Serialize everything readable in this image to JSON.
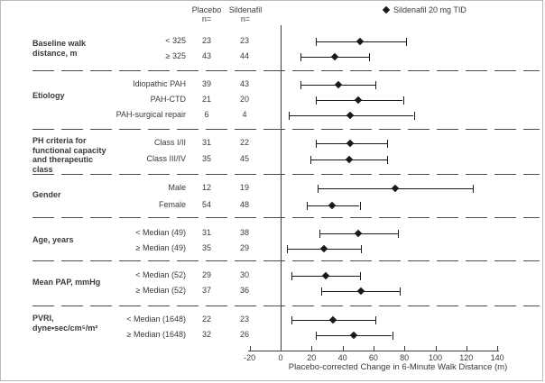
{
  "header": {
    "placebo_col": "Placebo",
    "sildenafil_col": "Sildenafil",
    "n_label": "n="
  },
  "legend": {
    "label": "Sildenafil 20 mg TID"
  },
  "chart_data": {
    "type": "scatter",
    "subtype": "forest-plot",
    "title": "",
    "xlabel": "Placebo-corrected Change in 6-Minute Walk Distance (m)",
    "ylabel": "",
    "xlim": [
      -20,
      140
    ],
    "xticks": [
      -20,
      0,
      20,
      40,
      60,
      80,
      100,
      120,
      140
    ],
    "reference_line_x": 0,
    "grid": false,
    "legend_position": "top-right",
    "legend_entries": [
      {
        "marker": "diamond",
        "label": "Sildenafil 20 mg TID"
      }
    ],
    "column_headers": [
      "Placebo n=",
      "Sildenafil n="
    ],
    "groups": [
      {
        "label": "Baseline walk\ndistance, m",
        "rows": [
          {
            "label": "< 325",
            "placebo_n": "23",
            "sildenafil_n": "23",
            "estimate": 51,
            "ci_low": 23,
            "ci_high": 81
          },
          {
            "label": "≥ 325",
            "placebo_n": "43",
            "sildenafil_n": "44",
            "estimate": 35,
            "ci_low": 13,
            "ci_high": 57
          }
        ]
      },
      {
        "label": "Etiology",
        "rows": [
          {
            "label": "Idiopathic PAH",
            "placebo_n": "39",
            "sildenafil_n": "43",
            "estimate": 37,
            "ci_low": 13,
            "ci_high": 61
          },
          {
            "label": "PAH-CTD",
            "placebo_n": "21",
            "sildenafil_n": "20",
            "estimate": 50,
            "ci_low": 23,
            "ci_high": 79
          },
          {
            "label": "PAH-surgical repair",
            "placebo_n": "6",
            "sildenafil_n": "4",
            "estimate": 45,
            "ci_low": 5,
            "ci_high": 86
          }
        ]
      },
      {
        "label": "PH criteria for\nfunctional capacity\nand therapeutic\nclass",
        "rows": [
          {
            "label": "Class I/II",
            "placebo_n": "31",
            "sildenafil_n": "22",
            "estimate": 45,
            "ci_low": 23,
            "ci_high": 69
          },
          {
            "label": "Class III/IV",
            "placebo_n": "35",
            "sildenafil_n": "45",
            "estimate": 44,
            "ci_low": 19,
            "ci_high": 69
          }
        ]
      },
      {
        "label": "Gender",
        "rows": [
          {
            "label": "Male",
            "placebo_n": "12",
            "sildenafil_n": "19",
            "estimate": 74,
            "ci_low": 24,
            "ci_high": 124
          },
          {
            "label": "Female",
            "placebo_n": "54",
            "sildenafil_n": "48",
            "estimate": 33,
            "ci_low": 17,
            "ci_high": 51
          }
        ]
      },
      {
        "label": "Age, years",
        "rows": [
          {
            "label": "< Median (49)",
            "placebo_n": "31",
            "sildenafil_n": "38",
            "estimate": 50,
            "ci_low": 25,
            "ci_high": 76
          },
          {
            "label": "≥ Median (49)",
            "placebo_n": "35",
            "sildenafil_n": "29",
            "estimate": 28,
            "ci_low": 4,
            "ci_high": 52
          }
        ]
      },
      {
        "label": "Mean PAP, mmHg",
        "rows": [
          {
            "label": "< Median (52)",
            "placebo_n": "29",
            "sildenafil_n": "30",
            "estimate": 29,
            "ci_low": 7,
            "ci_high": 51
          },
          {
            "label": "≥ Median (52)",
            "placebo_n": "37",
            "sildenafil_n": "36",
            "estimate": 52,
            "ci_low": 26,
            "ci_high": 77
          }
        ]
      },
      {
        "label": "PVRI,\ndyne•sec/cm⁵/m²",
        "rows": [
          {
            "label": "< Median (1648)",
            "placebo_n": "22",
            "sildenafil_n": "23",
            "estimate": 34,
            "ci_low": 7,
            "ci_high": 61
          },
          {
            "label": "≥ Median (1648)",
            "placebo_n": "32",
            "sildenafil_n": "26",
            "estimate": 47,
            "ci_low": 23,
            "ci_high": 72
          }
        ]
      }
    ]
  }
}
